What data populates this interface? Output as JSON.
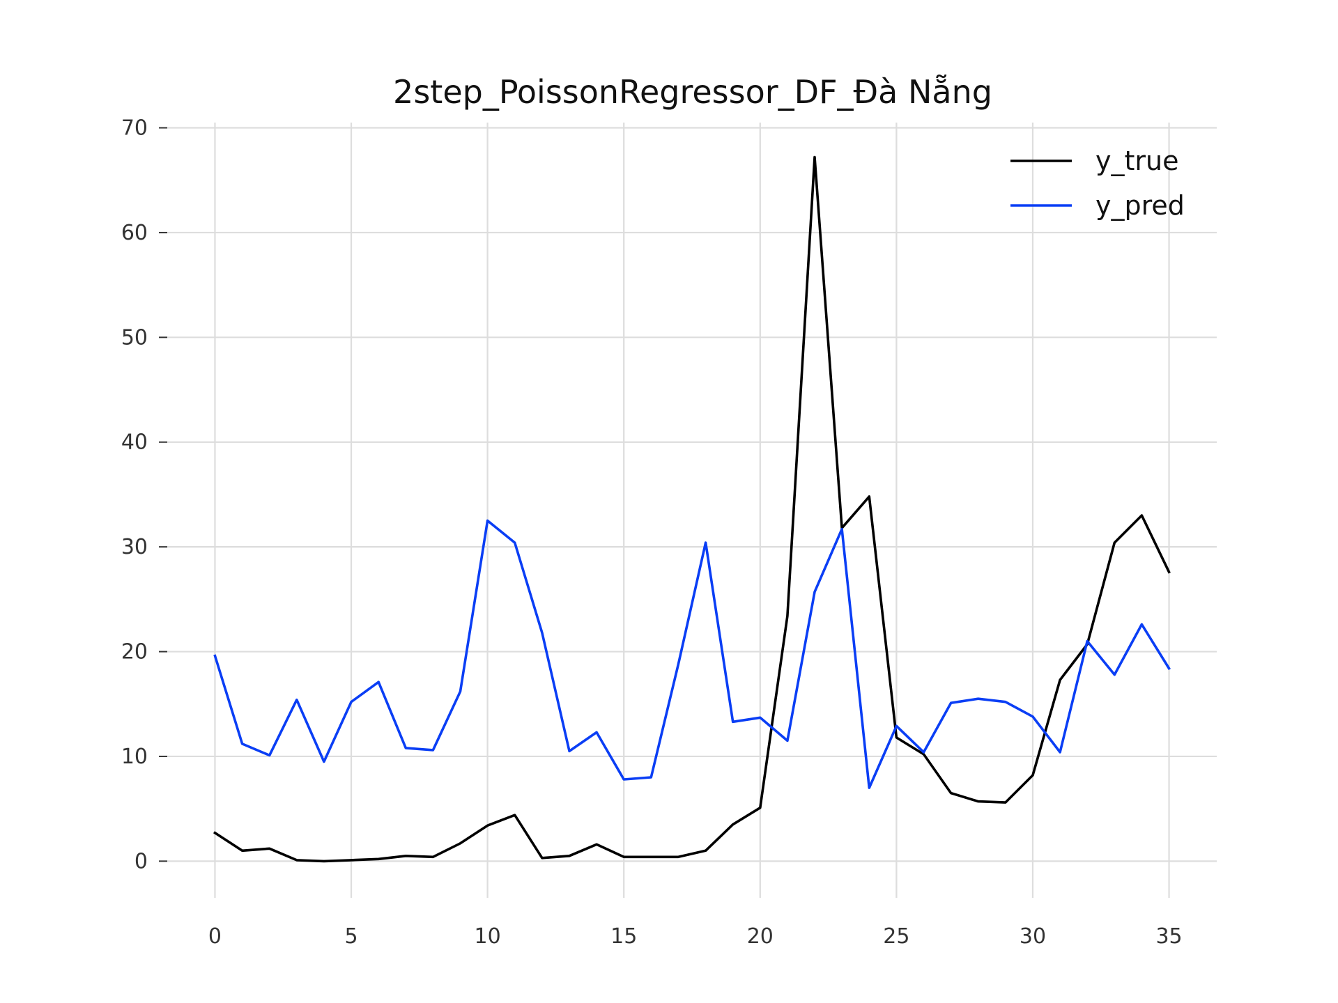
{
  "chart_data": {
    "type": "line",
    "title": "2step_PoissonRegressor_DF_Đà Nẵng",
    "xlabel": "",
    "ylabel": "",
    "xlim": [
      -1.75,
      36.75
    ],
    "ylim": [
      -3.5,
      70.5
    ],
    "x_ticks": [
      0,
      5,
      10,
      15,
      20,
      25,
      30,
      35
    ],
    "y_ticks": [
      0,
      10,
      20,
      30,
      40,
      50,
      60,
      70
    ],
    "grid": true,
    "legend_position": "top-right",
    "x": [
      0,
      1,
      2,
      3,
      4,
      5,
      6,
      7,
      8,
      9,
      10,
      11,
      12,
      13,
      14,
      15,
      16,
      17,
      18,
      19,
      20,
      21,
      22,
      23,
      24,
      25,
      26,
      27,
      28,
      29,
      30,
      31,
      32,
      33,
      34,
      35
    ],
    "series": [
      {
        "name": "y_true",
        "color": "#000000",
        "values": [
          2.7,
          1.0,
          1.2,
          0.1,
          0.0,
          0.1,
          0.2,
          0.5,
          0.4,
          1.7,
          3.4,
          4.4,
          0.3,
          0.5,
          1.6,
          0.4,
          0.4,
          0.4,
          1.0,
          3.5,
          5.1,
          23.4,
          67.2,
          31.8,
          34.8,
          11.8,
          10.2,
          6.5,
          5.7,
          5.6,
          8.2,
          17.3,
          20.7,
          30.4,
          33.0,
          27.6
        ]
      },
      {
        "name": "y_pred",
        "color": "#0a3ef5",
        "values": [
          19.6,
          11.2,
          10.1,
          15.4,
          9.5,
          15.2,
          17.1,
          10.8,
          10.6,
          16.2,
          32.5,
          30.4,
          21.8,
          10.5,
          12.3,
          7.8,
          8.0,
          18.8,
          30.4,
          13.3,
          13.7,
          11.5,
          25.7,
          31.7,
          7.0,
          12.9,
          10.4,
          15.1,
          15.5,
          15.2,
          13.8,
          10.4,
          21.0,
          17.8,
          22.6,
          18.4
        ]
      }
    ]
  }
}
